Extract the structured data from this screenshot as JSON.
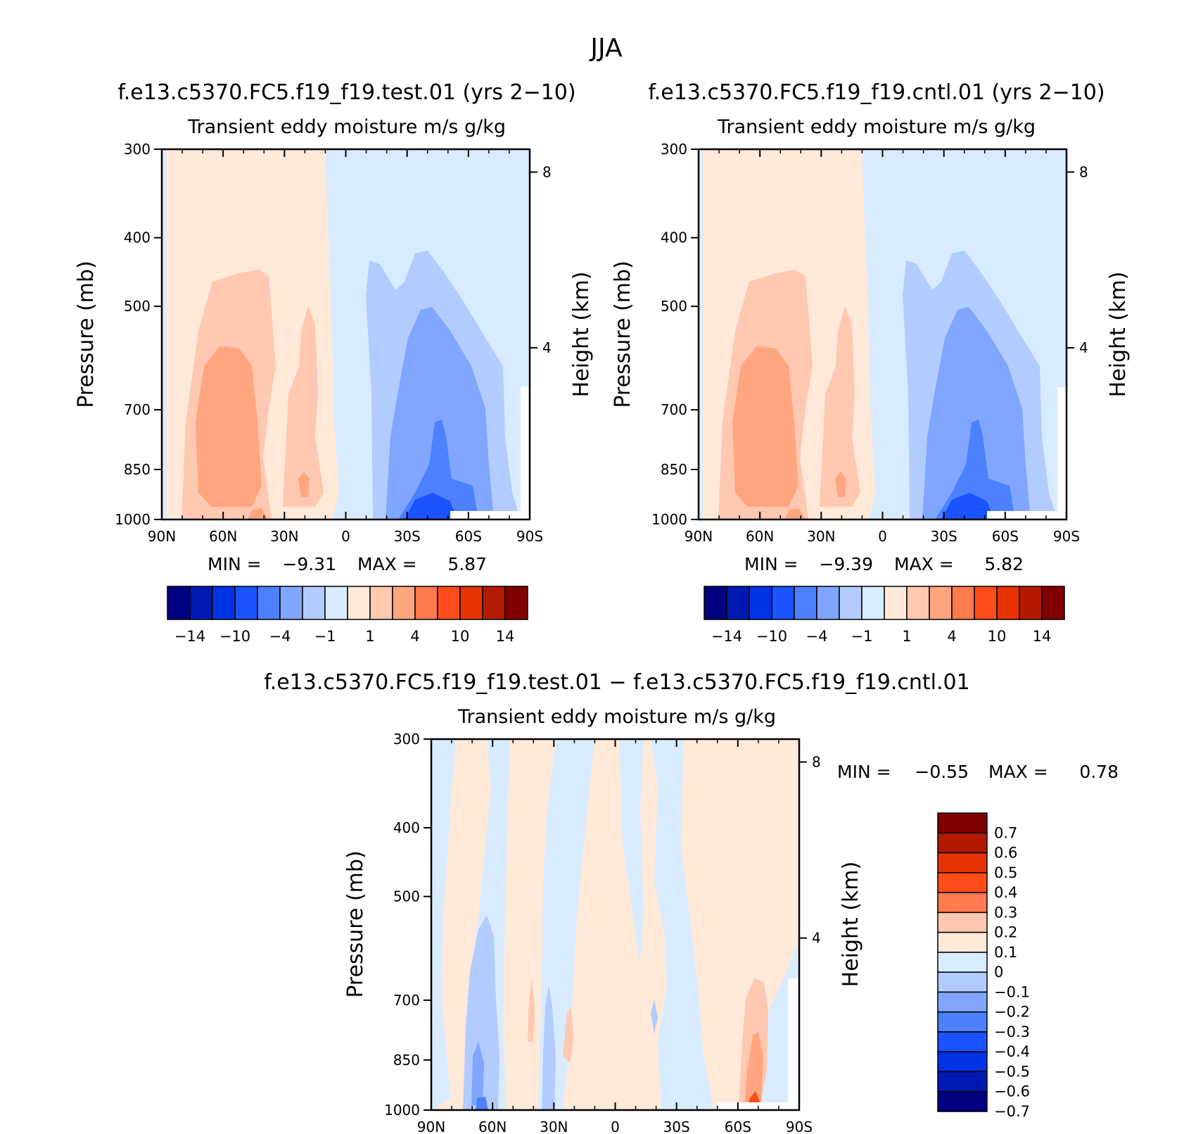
{
  "figure": {
    "title": "JJA"
  },
  "chart_data": [
    {
      "type": "heatmap",
      "title": "f.e13.c5370.FC5.f19_f19.test.01 (yrs 2−10)",
      "subtitle": "Transient eddy moisture m/s g/kg",
      "ylabel": "Pressure (mb)",
      "y2label": "Height (km)",
      "x_ticks": [
        "90N",
        "60N",
        "30N",
        "0",
        "30S",
        "60S",
        "90S"
      ],
      "y_ticks": [
        300,
        400,
        500,
        700,
        850,
        1000
      ],
      "y2_ticks": [
        8,
        4
      ],
      "ylim": [
        1000,
        300
      ],
      "min_label": "MIN =",
      "min_value": "−9.31",
      "max_label": "MAX =",
      "max_value": "5.87",
      "colorbar": {
        "colors": [
          "#000080",
          "#0019b3",
          "#0033e6",
          "#1a53ff",
          "#4d80ff",
          "#80a6ff",
          "#b3ccff",
          "#d9ecff",
          "#ffe9d9",
          "#ffc8b0",
          "#ffa680",
          "#ff7a4d",
          "#ff4d1a",
          "#e63300",
          "#b31a00",
          "#800000"
        ],
        "labels": [
          "−14",
          "−10",
          "−4",
          "−1",
          "1",
          "4",
          "10",
          "14"
        ]
      }
    },
    {
      "type": "heatmap",
      "title": "f.e13.c5370.FC5.f19_f19.cntl.01 (yrs 2−10)",
      "subtitle": "Transient eddy moisture m/s g/kg",
      "ylabel": "Pressure (mb)",
      "y2label": "Height (km)",
      "x_ticks": [
        "90N",
        "60N",
        "30N",
        "0",
        "30S",
        "60S",
        "90S"
      ],
      "y_ticks": [
        300,
        400,
        500,
        700,
        850,
        1000
      ],
      "y2_ticks": [
        8,
        4
      ],
      "ylim": [
        1000,
        300
      ],
      "min_label": "MIN =",
      "min_value": "−9.39",
      "max_label": "MAX =",
      "max_value": "5.82",
      "colorbar": {
        "colors": [
          "#000080",
          "#0019b3",
          "#0033e6",
          "#1a53ff",
          "#4d80ff",
          "#80a6ff",
          "#b3ccff",
          "#d9ecff",
          "#ffe9d9",
          "#ffc8b0",
          "#ffa680",
          "#ff7a4d",
          "#ff4d1a",
          "#e63300",
          "#b31a00",
          "#800000"
        ],
        "labels": [
          "−14",
          "−10",
          "−4",
          "−1",
          "1",
          "4",
          "10",
          "14"
        ]
      }
    },
    {
      "type": "heatmap",
      "title": "f.e13.c5370.FC5.f19_f19.test.01 − f.e13.c5370.FC5.f19_f19.cntl.01",
      "subtitle": "Transient eddy moisture m/s g/kg",
      "ylabel": "Pressure (mb)",
      "y2label": "Height (km)",
      "x_ticks": [
        "90N",
        "60N",
        "30N",
        "0",
        "30S",
        "60S",
        "90S"
      ],
      "y_ticks": [
        300,
        400,
        500,
        700,
        850,
        1000
      ],
      "y2_ticks": [
        8,
        4
      ],
      "ylim": [
        1000,
        300
      ],
      "min_label": "MIN =",
      "min_value": "−0.55",
      "max_label": "MAX =",
      "max_value": "0.78",
      "colorbar": {
        "colors": [
          "#800000",
          "#b31a00",
          "#e63300",
          "#ff4d1a",
          "#ff7a4d",
          "#ffc8b0",
          "#ffe9d9",
          "#d9ecff",
          "#b3ccff",
          "#80a6ff",
          "#4d80ff",
          "#1a53ff",
          "#0033e6",
          "#0019b3",
          "#000080"
        ],
        "labels": [
          "0.7",
          "0.6",
          "0.5",
          "0.4",
          "0.3",
          "0.2",
          "0.1",
          "0",
          "−0.1",
          "−0.2",
          "−0.3",
          "−0.4",
          "−0.5",
          "−0.6",
          "−0.7"
        ]
      }
    }
  ]
}
